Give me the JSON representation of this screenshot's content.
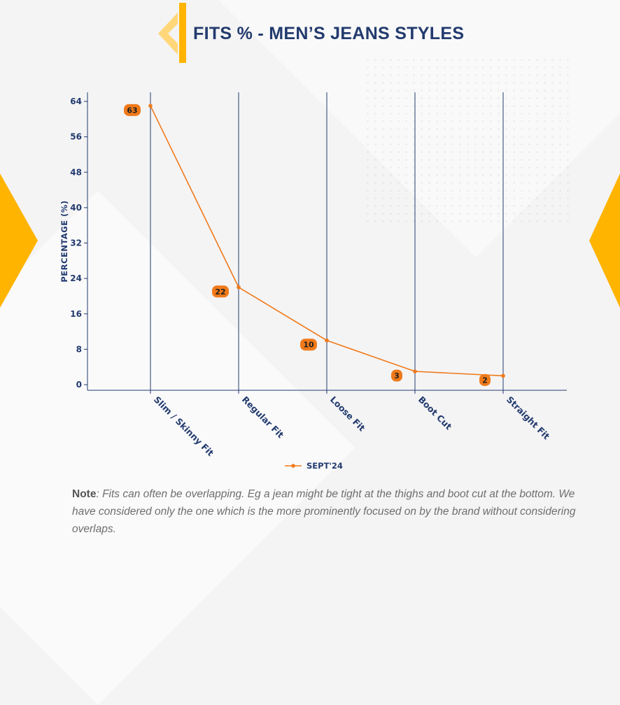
{
  "title": "FITS % - MEN’S JEANS STYLES",
  "colors": {
    "accent": "#ffb400",
    "navy": "#233b6e",
    "series": "#f07a1a"
  },
  "chart_data": {
    "type": "line",
    "title": "FITS % - MEN’S JEANS STYLES",
    "categories": [
      "Slim / Skinny Fit",
      "Regular Fit",
      "Loose Fit",
      "Boot Cut",
      "Straight Fit"
    ],
    "series": [
      {
        "name": "SEPT'24",
        "values": [
          63,
          22,
          10,
          3,
          2
        ]
      }
    ],
    "data_labels": [
      "63",
      "22",
      "10",
      "3",
      "2"
    ],
    "ylabel": "PERCENTAGE (%)",
    "xlabel": "",
    "ylim": [
      0,
      64
    ],
    "yticks": [
      "0",
      "8",
      "16",
      "24",
      "32",
      "40",
      "48",
      "56",
      "64"
    ],
    "grid": "vertical",
    "legend_position": "bottom"
  },
  "note": {
    "label": "Note",
    "text": ": Fits can often be overlapping. Eg a jean might be tight at the thighs and boot cut at the bottom. We have considered only the one which is the more prominently focused on by the brand without considering overlaps."
  }
}
